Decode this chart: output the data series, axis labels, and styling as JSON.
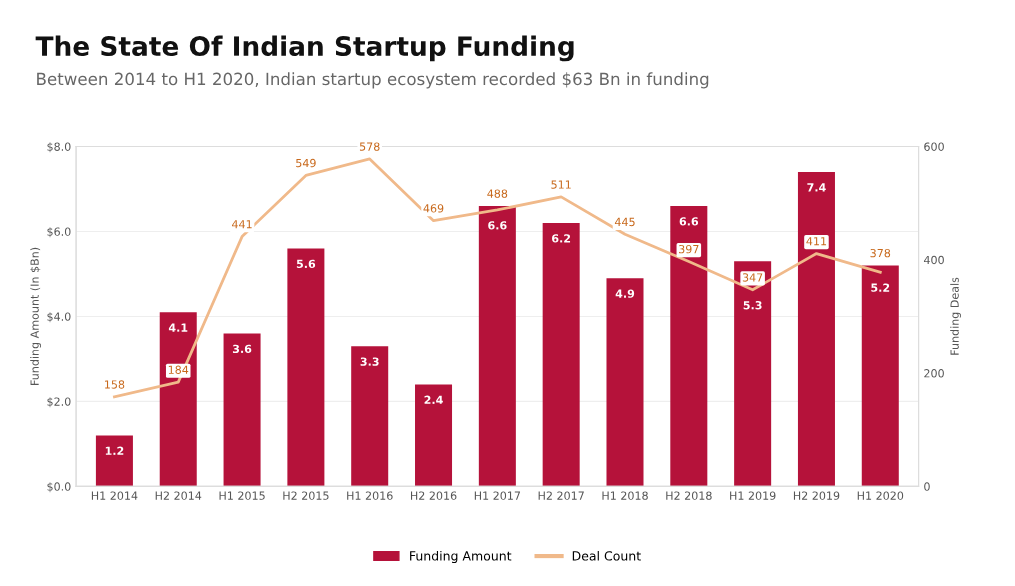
{
  "chart_data": {
    "type": "bar",
    "title": "The State Of Indian Startup Funding",
    "subtitle": "Between 2014 to H1 2020, Indian startup ecosystem recorded $63 Bn in funding",
    "categories": [
      "H1 2014",
      "H2 2014",
      "H1 2015",
      "H2 2015",
      "H1 2016",
      "H2 2016",
      "H1 2017",
      "H2 2017",
      "H1 2018",
      "H2 2018",
      "H1 2019",
      "H2 2019",
      "H1 2020"
    ],
    "series": [
      {
        "name": "Funding Amount",
        "color": "#b5123a",
        "values": [
          1.2,
          4.1,
          3.6,
          5.6,
          3.3,
          2.4,
          6.6,
          6.2,
          4.9,
          6.6,
          5.3,
          7.4,
          5.2
        ]
      },
      {
        "name": "Deal Count",
        "type": "line",
        "axis": "y2",
        "color": "#f0b98a",
        "values": [
          158,
          184,
          441,
          549,
          578,
          469,
          488,
          511,
          445,
          397,
          347,
          411,
          378
        ]
      }
    ],
    "ylabel": "Funding Amount (In $Bn)",
    "y2label": "Funding Deals",
    "ylim": [
      0,
      8
    ],
    "yticks": [
      {
        "value": 0,
        "label": "$0.0"
      },
      {
        "value": 2,
        "label": "$2.0"
      },
      {
        "value": 4,
        "label": "$4.0"
      },
      {
        "value": 6,
        "label": "$6.0"
      },
      {
        "value": 8,
        "label": "$8.0"
      }
    ],
    "y2lim": [
      0,
      600
    ],
    "y2ticks": [
      0,
      200,
      400,
      600
    ],
    "data_labels": true,
    "grid": "y",
    "legend": "bottom",
    "line_style": "solid",
    "marker": "none"
  }
}
